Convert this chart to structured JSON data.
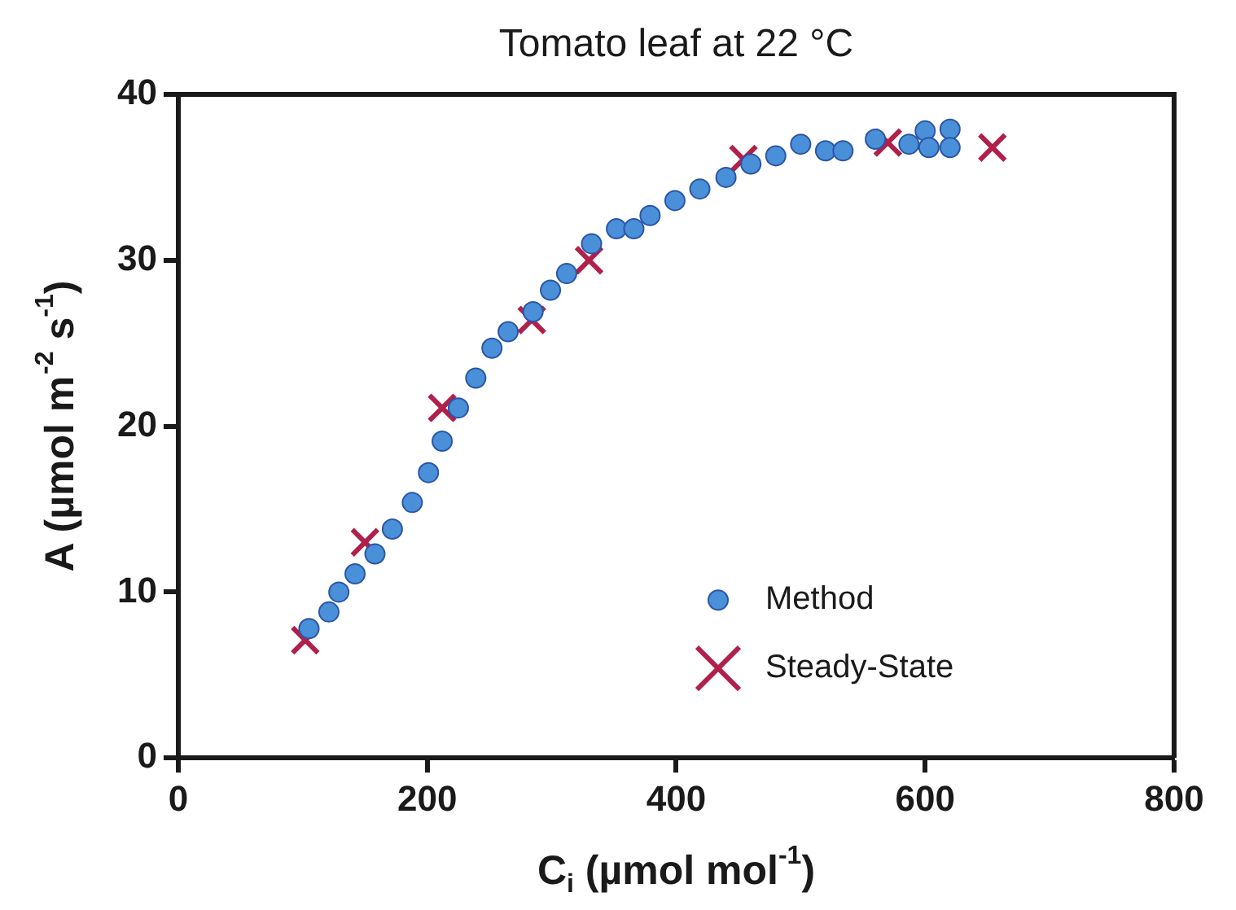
{
  "chart_data": {
    "type": "scatter",
    "title": "Tomato leaf at 22 °C",
    "xlabel": "C$_{i}$ (µmol mol$^{-1}$)",
    "ylabel": "A (µmol m$^{-2}$ s$^{-1}$)",
    "xlim": [
      0,
      800
    ],
    "xticks": [
      0,
      200,
      400,
      600,
      800
    ],
    "ylim": [
      0,
      40
    ],
    "yticks": [
      0,
      10,
      20,
      30,
      40
    ],
    "grid": false,
    "legend": "bottom right",
    "series": [
      {
        "name": "Method",
        "color": "#4a90d9",
        "marker": "circle",
        "x": [
          105,
          121,
          129,
          142,
          158,
          172,
          188,
          201,
          212,
          225,
          239,
          252,
          265,
          285,
          299,
          312,
          332,
          352,
          366,
          379,
          399,
          419,
          440,
          460,
          480,
          500,
          520,
          534,
          560,
          587,
          600,
          603,
          620,
          620
        ],
        "values": [
          7.8,
          8.8,
          10.0,
          11.1,
          12.3,
          13.8,
          15.4,
          17.2,
          19.1,
          21.1,
          22.9,
          24.7,
          25.7,
          26.9,
          28.2,
          29.2,
          31.0,
          31.9,
          31.9,
          32.7,
          33.6,
          34.3,
          35.0,
          35.8,
          36.3,
          37.0,
          36.6,
          36.6,
          37.3,
          37.0,
          37.8,
          36.8,
          37.9,
          36.8
        ]
      },
      {
        "name": "Steady-State",
        "color": "#b0204a",
        "marker": "cross",
        "x": [
          102,
          150,
          212,
          284,
          330,
          454,
          570,
          654
        ],
        "values": [
          7.1,
          13.0,
          21.1,
          26.4,
          30.0,
          36.1,
          37.1,
          36.8
        ]
      }
    ]
  }
}
